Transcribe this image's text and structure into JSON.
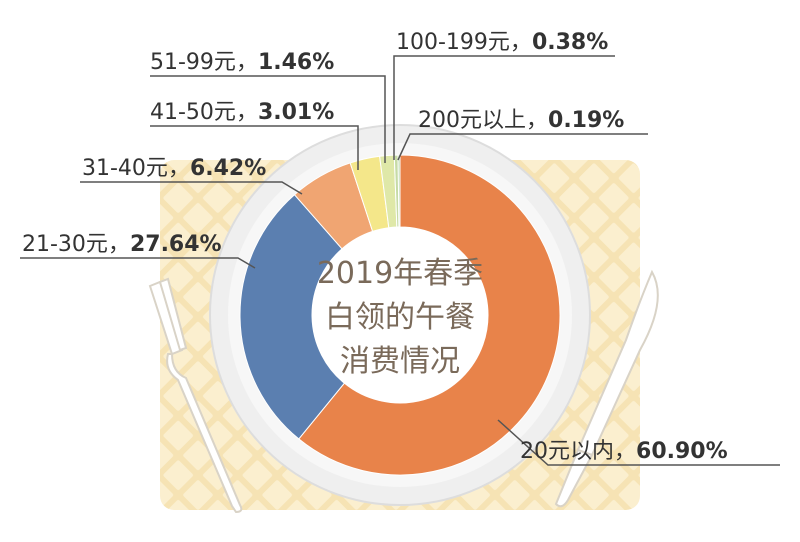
{
  "chart_data": {
    "type": "pie",
    "title_lines": [
      "2019年春季",
      "白领的午餐",
      "消费情况"
    ],
    "slices": [
      {
        "range": "20元以内",
        "value": 60.9,
        "label": "60.90%",
        "color": "#e8834a"
      },
      {
        "range": "21-30元",
        "value": 27.64,
        "label": "27.64%",
        "color": "#5b7fb0"
      },
      {
        "range": "31-40元",
        "value": 6.42,
        "label": "6.42%",
        "color": "#f0a572"
      },
      {
        "range": "41-50元",
        "value": 3.01,
        "label": "3.01%",
        "color": "#f4e78a"
      },
      {
        "range": "51-99元",
        "value": 1.46,
        "label": "1.46%",
        "color": "#dfe8a8"
      },
      {
        "range": "100-199元",
        "value": 0.38,
        "label": "0.38%",
        "color": "#c6dba6"
      },
      {
        "range": "200元以上",
        "value": 0.19,
        "label": "0.19%",
        "color": "#a8cf9a"
      }
    ],
    "legend": "callouts"
  }
}
